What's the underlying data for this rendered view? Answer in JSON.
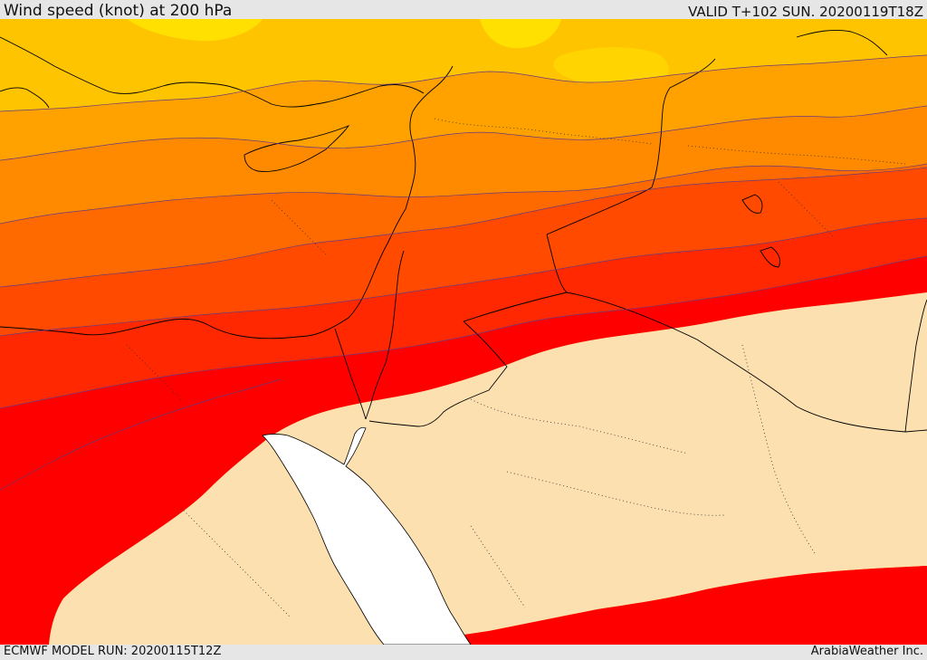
{
  "header": {
    "title": "Wind speed (knot) at 200 hPa",
    "valid": "VALID T+102 SUN. 20200119T18Z"
  },
  "footer": {
    "model_run": "ECMWF MODEL RUN: 20200115T12Z",
    "credit": "ArabiaWeather Inc."
  },
  "colors": {
    "band_yellow": "#FFD400",
    "band_light_yellow": "#FFE000",
    "band_gold": "#FFC400",
    "band_orange_light": "#FFA200",
    "band_orange": "#FF8A00",
    "band_orange_dark": "#FF6A00",
    "band_red_orange": "#FF4A00",
    "band_red_mid": "#FF2800",
    "band_red": "#FF0000",
    "land_calm": "#FCE0B0",
    "sea": "#FFFFFF",
    "coastline": "#000000",
    "contour": "#6A3A7A"
  }
}
